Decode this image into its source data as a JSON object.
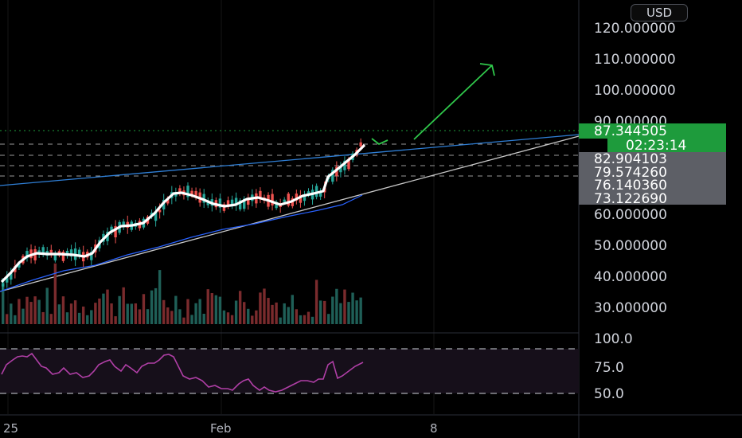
{
  "currency_button": "USD",
  "colors": {
    "background": "#000000",
    "up": "#26a69a",
    "down": "#ef5350",
    "price_label_bg": "#1e9b3c",
    "level_label_bg": "#5d5f66",
    "trendline_upper": "#2f7fd6",
    "trendline_lower": "#c8c8c8",
    "ma": "#ffffff",
    "arrow": "#30c84b",
    "rsi": "#b03fa6",
    "grid": "#1a1a1a"
  },
  "chart_data": {
    "type": "candlestick",
    "price_axis": {
      "ticks": [
        "120.000000",
        "110.000000",
        "100.000000",
        "90.000000",
        "60.000000",
        "50.000000",
        "40.000000",
        "30.000000"
      ],
      "tick_values": [
        120,
        110,
        100,
        90,
        60,
        50,
        40,
        30
      ]
    },
    "time_axis": {
      "ticks": [
        "25",
        "Feb",
        "8"
      ]
    },
    "current_price": "87.344505",
    "countdown": "02:23:14",
    "levels": [
      "82.904103",
      "79.574260",
      "76.140360",
      "73.122690"
    ],
    "level_values": [
      82.904103,
      79.57426,
      76.14036,
      73.12269
    ],
    "rsi_axis": {
      "ticks": [
        "100.0",
        "75.0",
        "50.0"
      ]
    },
    "rsi_bands": [
      70,
      30
    ],
    "annotations": [
      "upper trendline",
      "lower trendline",
      "target arrow to ~110",
      "short dip arrow"
    ]
  }
}
